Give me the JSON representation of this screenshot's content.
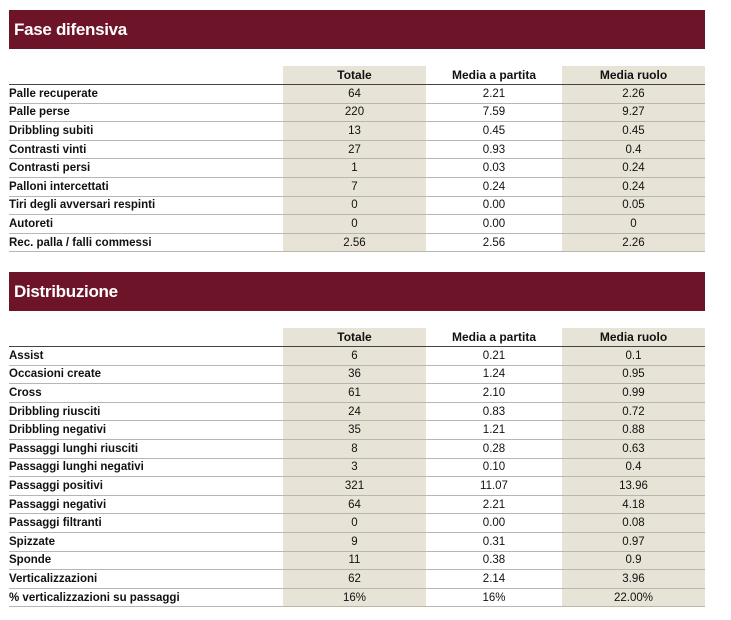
{
  "columns": [
    "Totale",
    "Media a partita",
    "Media ruolo"
  ],
  "sections": [
    {
      "title": "Fase difensiva",
      "rows": [
        [
          "Palle recuperate",
          "64",
          "2.21",
          "2.26"
        ],
        [
          "Palle perse",
          "220",
          "7.59",
          "9.27"
        ],
        [
          "Dribbling subiti",
          "13",
          "0.45",
          "0.45"
        ],
        [
          "Contrasti vinti",
          "27",
          "0.93",
          "0.4"
        ],
        [
          "Contrasti persi",
          "1",
          "0.03",
          "0.24"
        ],
        [
          "Palloni intercettati",
          "7",
          "0.24",
          "0.24"
        ],
        [
          "Tiri degli avversari respinti",
          "0",
          "0.00",
          "0.05"
        ],
        [
          "Autoreti",
          "0",
          "0.00",
          "0"
        ],
        [
          "Rec. palla / falli commessi",
          "2.56",
          "2.56",
          "2.26"
        ]
      ]
    },
    {
      "title": "Distribuzione",
      "rows": [
        [
          "Assist",
          "6",
          "0.21",
          "0.1"
        ],
        [
          "Occasioni create",
          "36",
          "1.24",
          "0.95"
        ],
        [
          "Cross",
          "61",
          "2.10",
          "0.99"
        ],
        [
          "Dribbling riusciti",
          "24",
          "0.83",
          "0.72"
        ],
        [
          "Dribbling negativi",
          "35",
          "1.21",
          "0.88"
        ],
        [
          "Passaggi lunghi riusciti",
          "8",
          "0.28",
          "0.63"
        ],
        [
          "Passaggi lunghi negativi",
          "3",
          "0.10",
          "0.4"
        ],
        [
          "Passaggi positivi",
          "321",
          "11.07",
          "13.96"
        ],
        [
          "Passaggi negativi",
          "64",
          "2.21",
          "4.18"
        ],
        [
          "Passaggi filtranti",
          "0",
          "0.00",
          "0.08"
        ],
        [
          "Spizzate",
          "9",
          "0.31",
          "0.97"
        ],
        [
          "Sponde",
          "11",
          "0.38",
          "0.9"
        ],
        [
          "Verticalizzazioni",
          "62",
          "2.14",
          "3.96"
        ],
        [
          "% verticalizzazioni su passaggi",
          "16%",
          "16%",
          "22.00%"
        ]
      ]
    }
  ],
  "colors": {
    "banner": "#6e1428",
    "shade": "#e7e3d6"
  }
}
